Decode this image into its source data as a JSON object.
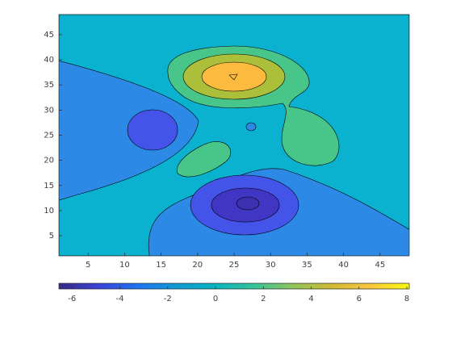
{
  "chart_data": {
    "type": "contour",
    "xlim": [
      1,
      49
    ],
    "ylim": [
      1,
      49
    ],
    "xticks": [
      5,
      10,
      15,
      20,
      25,
      30,
      35,
      40,
      45
    ],
    "yticks": [
      5,
      10,
      15,
      20,
      25,
      30,
      35,
      40,
      45
    ],
    "levels": [
      -6,
      -4,
      -2,
      0,
      2,
      4,
      6,
      8
    ],
    "band_colors": [
      "#3c2fb0",
      "#4135c4",
      "#4453e8",
      "#2c8ae6",
      "#0ab2cf",
      "#48c68a",
      "#acbf3b",
      "#fcbb3e"
    ],
    "colorbar": {
      "clim": [
        -6.55,
        8.1
      ],
      "ticks": [
        -6,
        -4,
        -2,
        0,
        2,
        4,
        6,
        8
      ],
      "colormap": [
        "#352a87",
        "#3b41d8",
        "#1e72f0",
        "#0f99d6",
        "#06b4bf",
        "#36c39b",
        "#8dc55a",
        "#d2ba36",
        "#fbc73c",
        "#f9fb0e"
      ]
    }
  }
}
